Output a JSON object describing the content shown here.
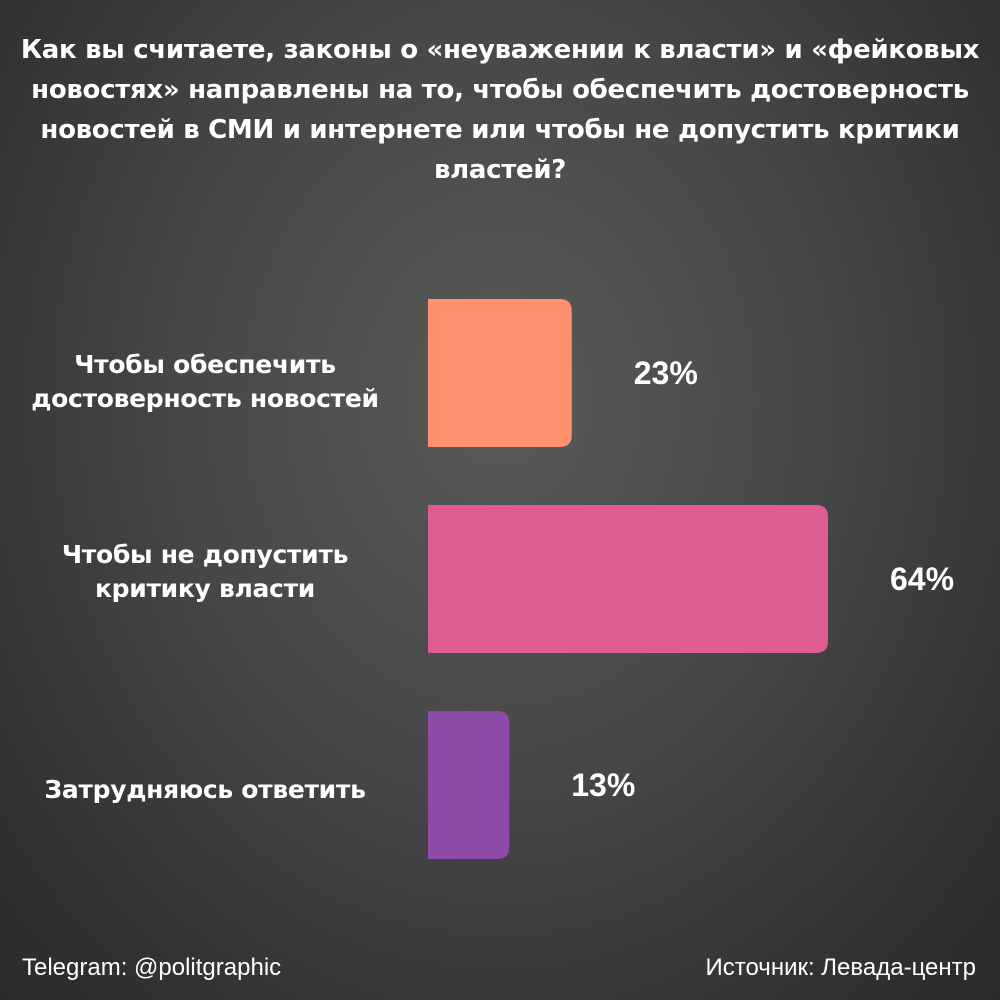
{
  "title": "Как вы считаете, законы о «неуважении к власти» и «фейковых новостях» направлены на то, чтобы обеспечить достоверность новостей в СМИ и интернете или чтобы не допустить критики властей?",
  "chart_data": {
    "type": "bar",
    "orientation": "horizontal",
    "categories": [
      "Чтобы обеспечить достоверность новостей",
      "Чтобы не допустить критику власти",
      "Затрудняюсь ответить"
    ],
    "values": [
      23,
      64,
      13
    ],
    "value_labels": [
      "23%",
      "64%",
      "13%"
    ],
    "colors": [
      "#ff9171",
      "#e05c95",
      "#8e4aa8"
    ],
    "unit": "%"
  },
  "footer": {
    "left": "Telegram: @politgraphic",
    "right": "Источник: Левада-центр"
  }
}
